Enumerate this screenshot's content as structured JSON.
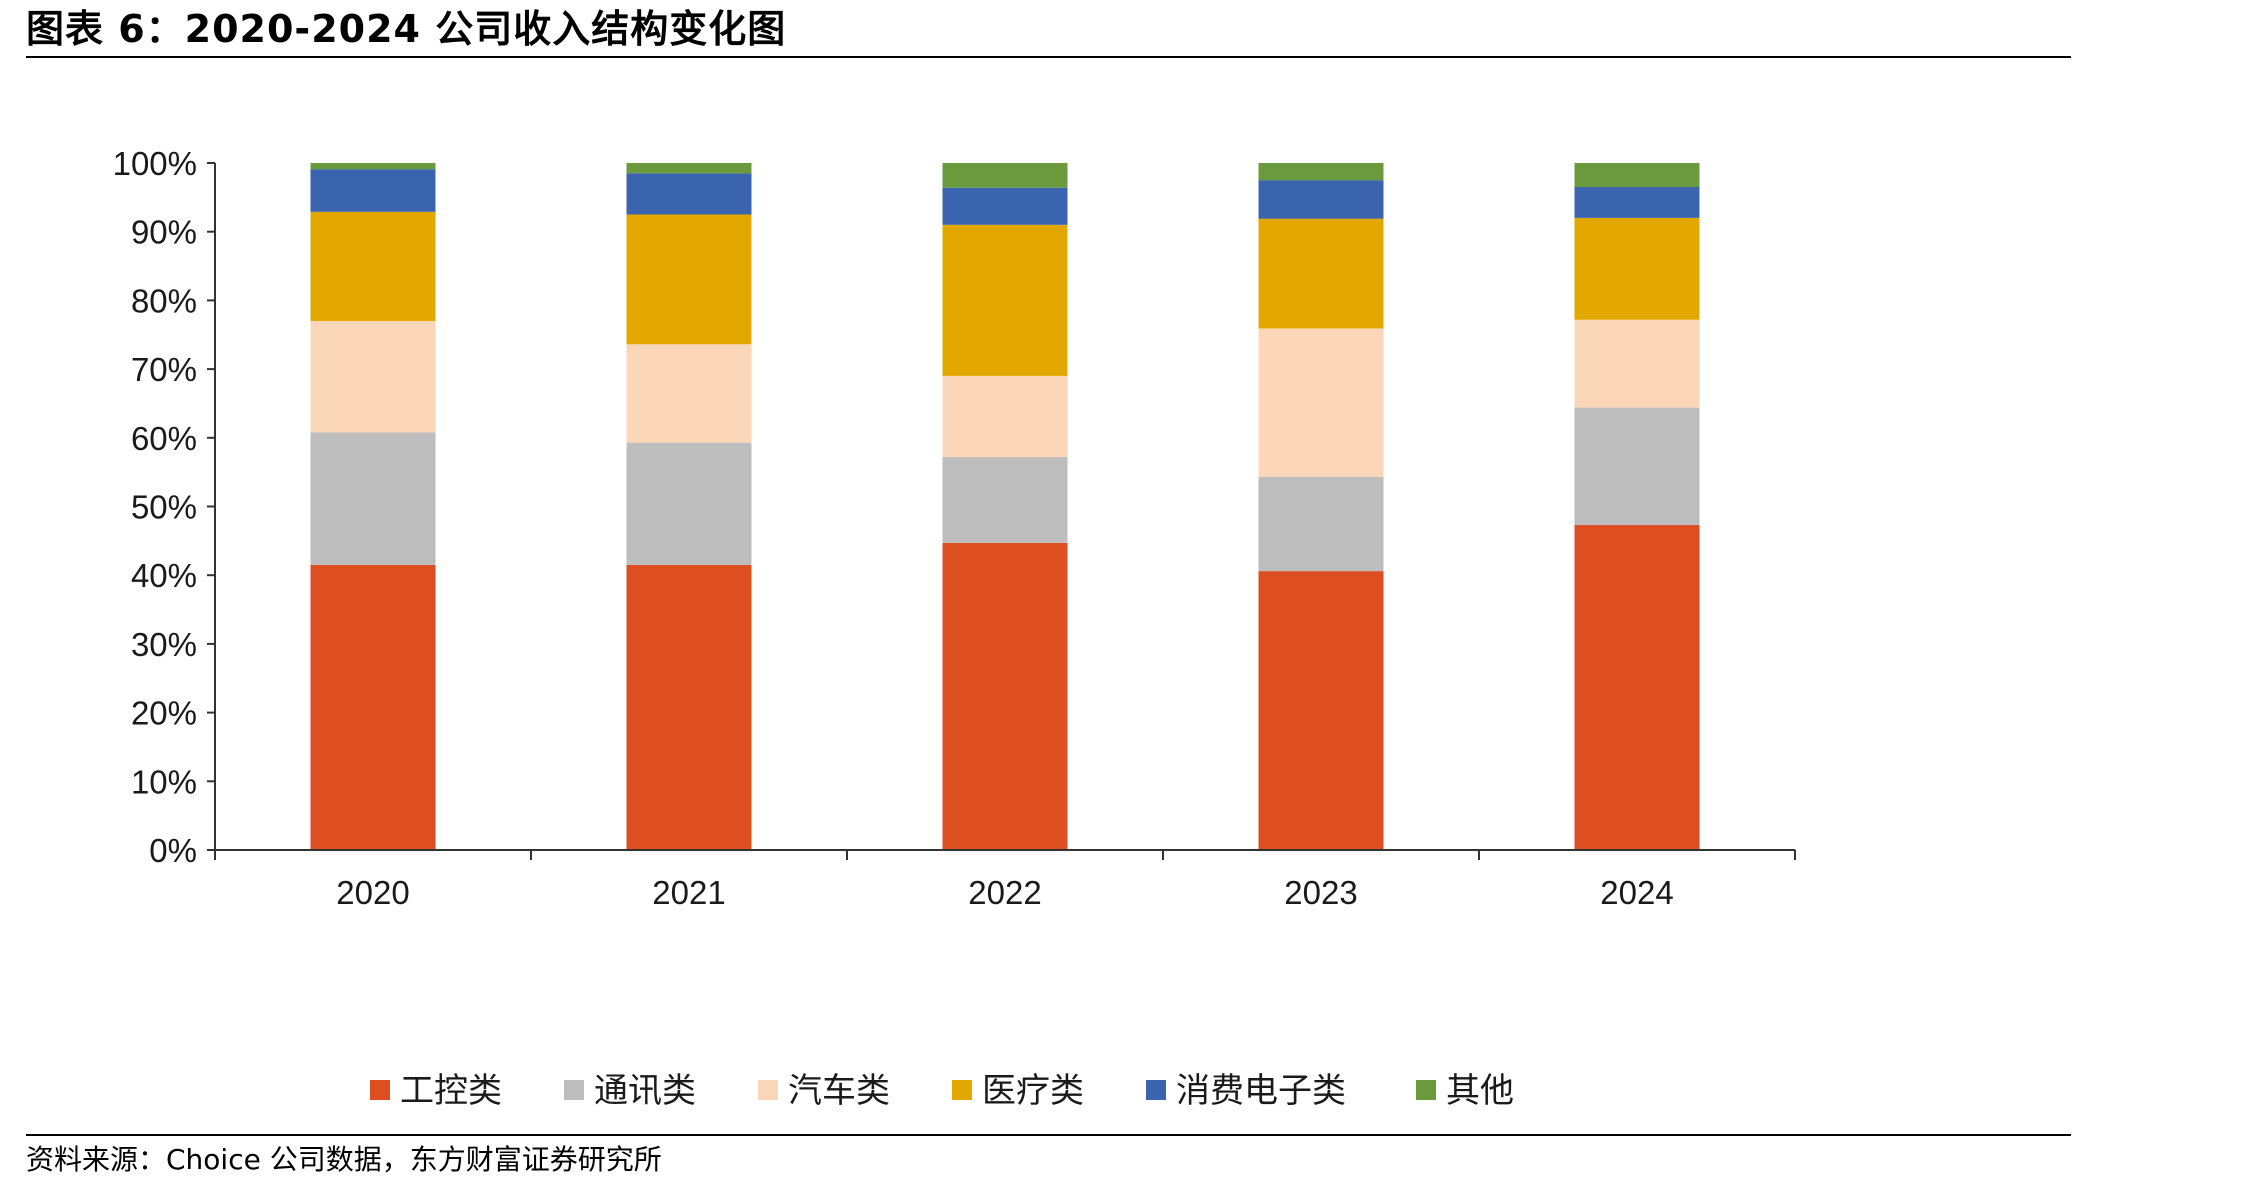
{
  "figure": {
    "title": "图表 6：2020-2024 公司收入结构变化图",
    "source": "资料来源：Choice 公司数据，东方财富证券研究所"
  },
  "chart_data": {
    "type": "bar",
    "stacked": true,
    "categories": [
      "2020",
      "2021",
      "2022",
      "2023",
      "2024"
    ],
    "ylim": [
      0,
      100
    ],
    "y_ticks": [
      "0%",
      "10%",
      "20%",
      "30%",
      "40%",
      "50%",
      "60%",
      "70%",
      "80%",
      "90%",
      "100%"
    ],
    "legend_position": "bottom",
    "grid": false,
    "series": [
      {
        "name": "工控类",
        "color": "#dd4e20",
        "values": [
          41.5,
          41.5,
          44.7,
          40.6,
          47.3
        ]
      },
      {
        "name": "通讯类",
        "color": "#bdbdbd",
        "values": [
          19.3,
          17.8,
          12.5,
          13.7,
          17.1
        ]
      },
      {
        "name": "汽车类",
        "color": "#fbd6b8",
        "values": [
          16.2,
          14.3,
          11.8,
          21.6,
          12.8
        ]
      },
      {
        "name": "医疗类",
        "color": "#e3a800",
        "values": [
          15.9,
          18.9,
          22.0,
          16.0,
          14.8
        ]
      },
      {
        "name": "消费电子类",
        "color": "#3a64ad",
        "values": [
          6.2,
          6.0,
          5.4,
          5.6,
          4.5
        ]
      },
      {
        "name": "其他",
        "color": "#6a9a3d",
        "values": [
          0.9,
          1.5,
          3.6,
          2.5,
          3.5
        ]
      }
    ]
  }
}
